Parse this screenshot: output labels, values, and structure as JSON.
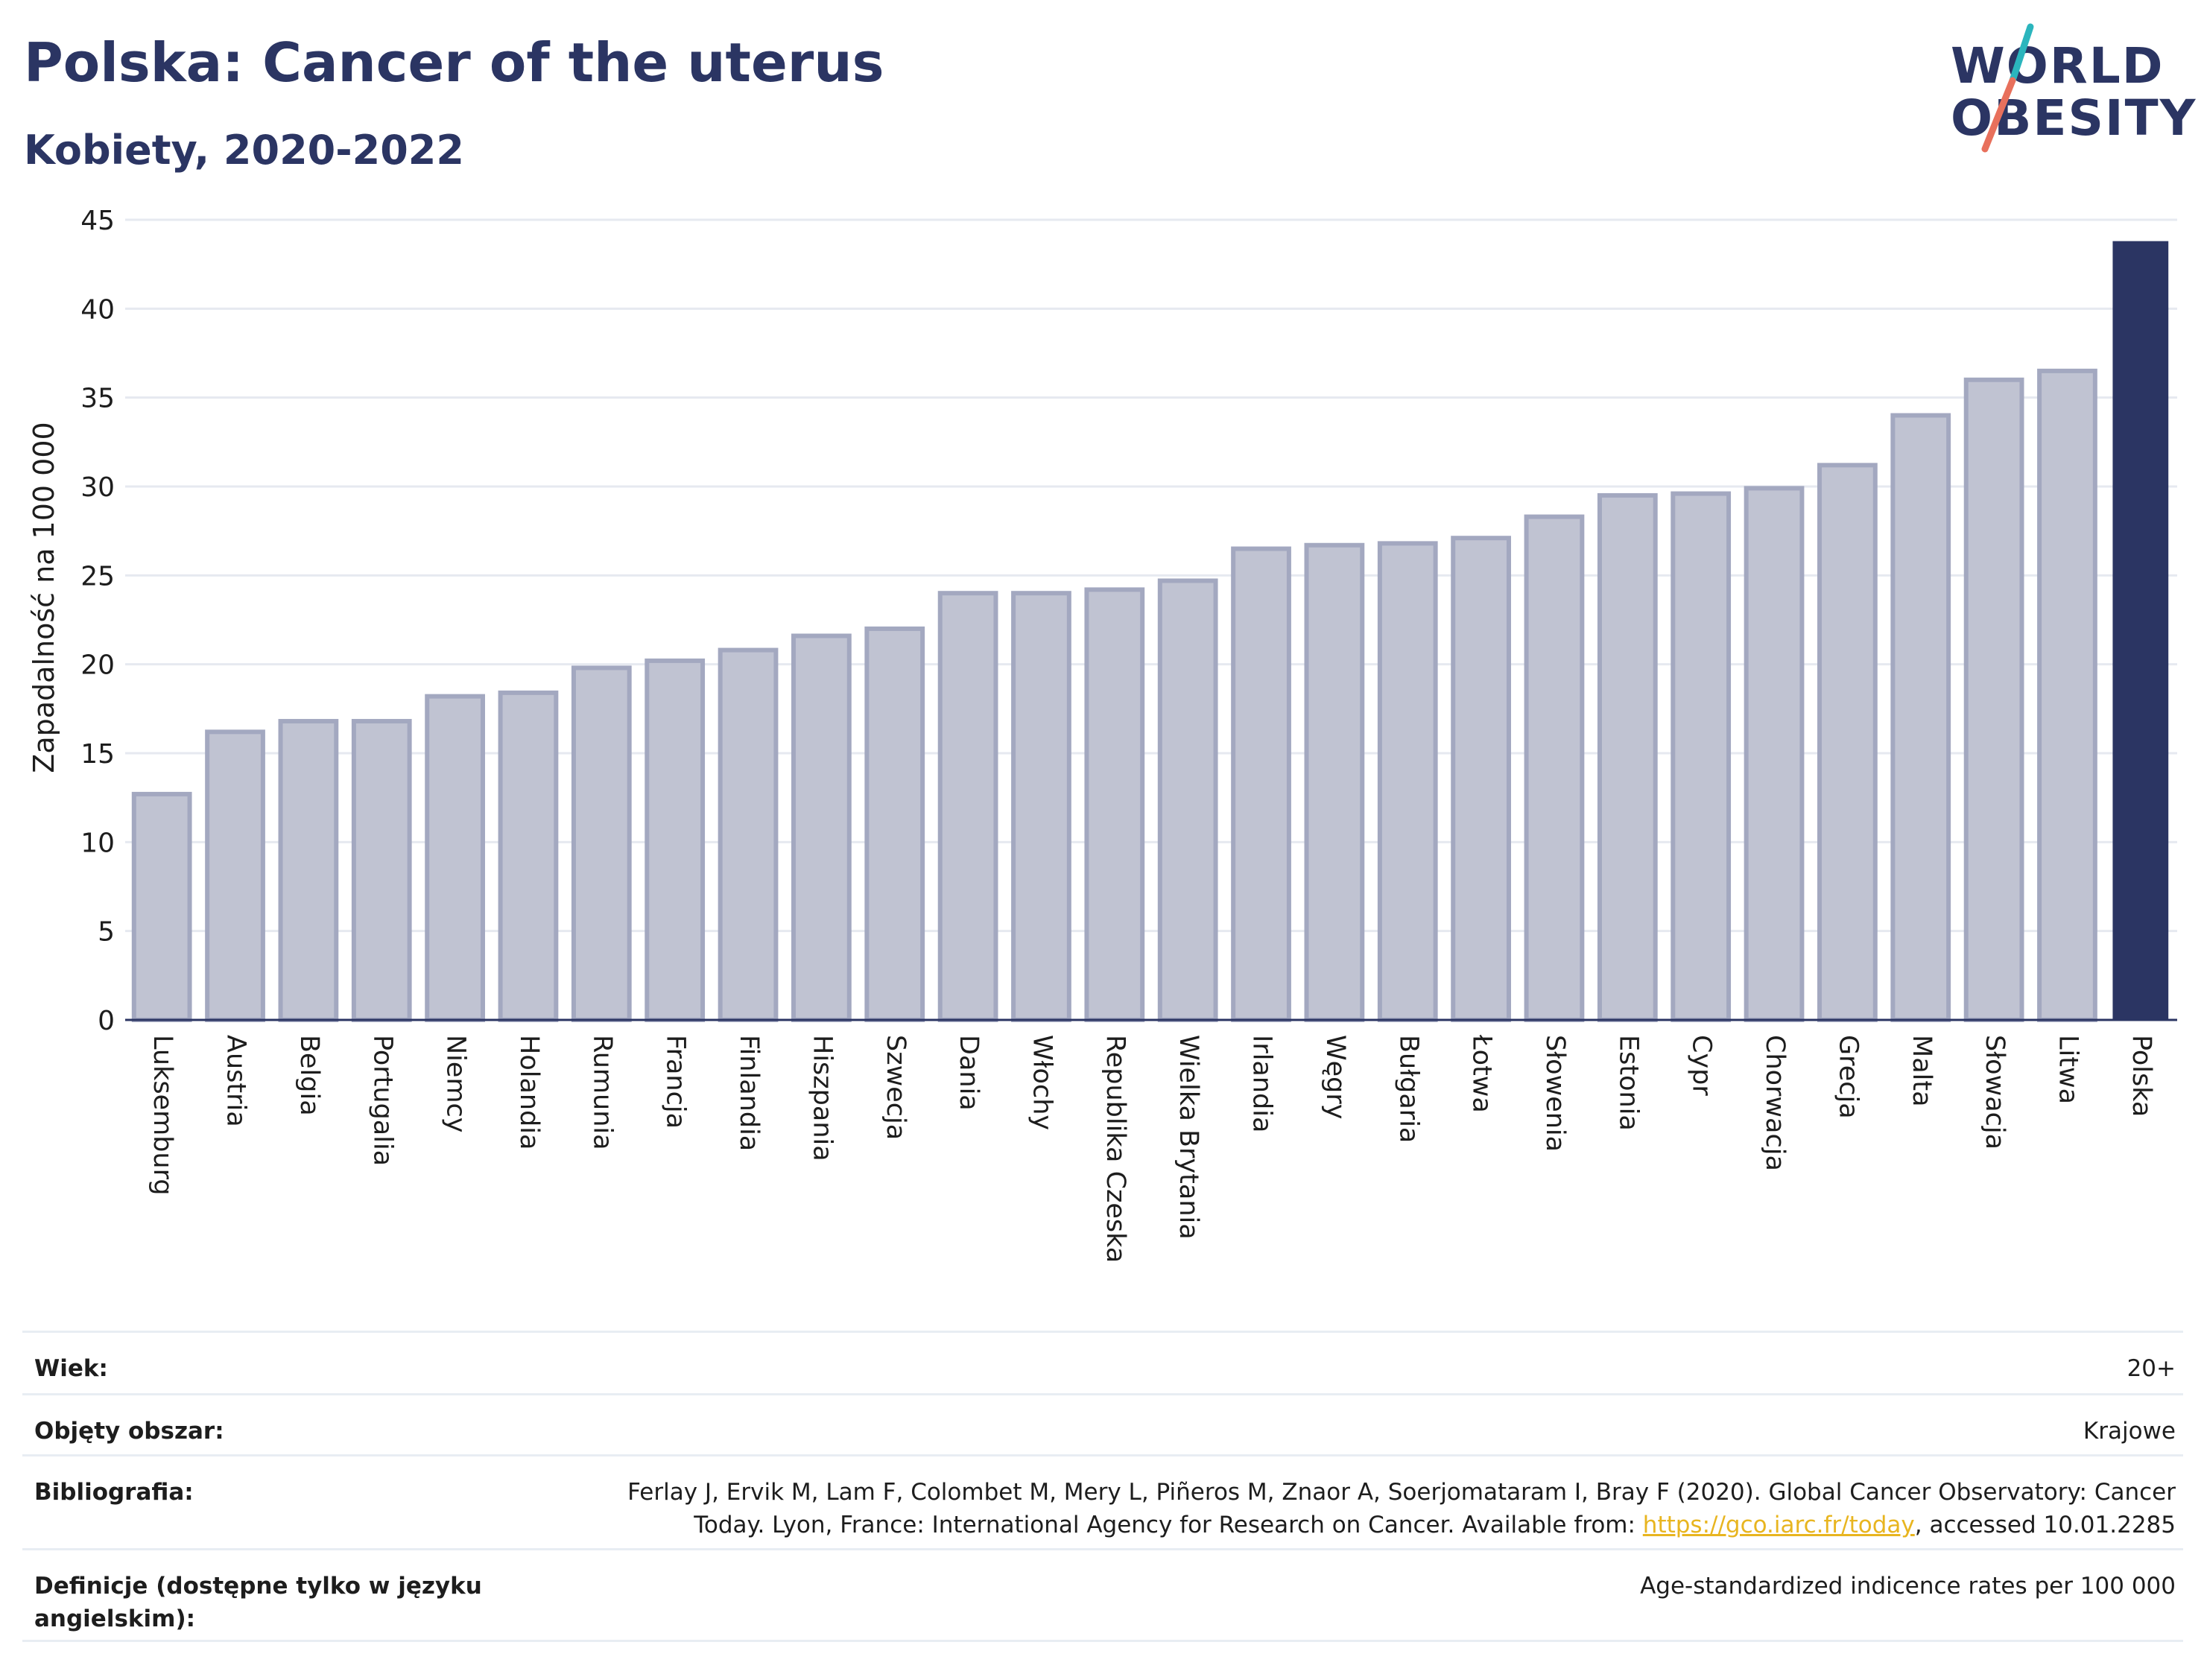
{
  "header": {
    "title": "Polska: Cancer of the uterus",
    "subtitle": "Kobiety, 2020-2022"
  },
  "logo": {
    "line1": "WORLD",
    "line2": "OBESITY",
    "colors": {
      "text": "#2b3563",
      "slash_top": "#2bb5bd",
      "slash_bottom": "#e8705c"
    }
  },
  "chart_data": {
    "type": "bar",
    "ylabel": "Zapadalność na 100 000",
    "ylim": [
      0,
      45
    ],
    "yticks": [
      0,
      5,
      10,
      15,
      20,
      25,
      30,
      35,
      40,
      45
    ],
    "grid": true,
    "highlight": "Polska",
    "colors": {
      "bar": "#c0c3d2",
      "bar_outline": "#a3a8c0",
      "highlight": "#2b3563"
    },
    "categories": [
      "Luksemburg",
      "Austria",
      "Belgia",
      "Portugalia",
      "Niemcy",
      "Holandia",
      "Rumunia",
      "Francja",
      "Finlandia",
      "Hiszpania",
      "Szwecja",
      "Dania",
      "Włochy",
      "Republika Czeska",
      "Wielka Brytania",
      "Irlandia",
      "Węgry",
      "Bułgaria",
      "Łotwa",
      "Słowenia",
      "Estonia",
      "Cypr",
      "Chorwacja",
      "Grecja",
      "Malta",
      "Słowacja",
      "Litwa",
      "Polska"
    ],
    "values": [
      12.7,
      16.2,
      16.8,
      16.8,
      18.2,
      18.4,
      19.8,
      20.2,
      20.8,
      21.6,
      22.0,
      24.0,
      24.0,
      24.2,
      24.7,
      26.5,
      26.7,
      26.8,
      27.1,
      28.3,
      29.5,
      29.6,
      29.9,
      31.2,
      34.0,
      36.0,
      36.5,
      43.8
    ]
  },
  "info": [
    {
      "label": "Wiek:",
      "value": "20+"
    },
    {
      "label": "Objęty obszar:",
      "value": "Krajowe"
    },
    {
      "label": "Bibliografia:",
      "value_line1": "Ferlay J, Ervik M, Lam F, Colombet M, Mery L, Piñeros M, Znaor A, Soerjomataram I, Bray F (2020). Global Cancer Observatory: Cancer",
      "value_line2_prefix": "Today. Lyon, France: International Agency for Research on Cancer. Available from: ",
      "link": "https://gco.iarc.fr/today",
      "value_line2_suffix": ", accessed 10.01.2285"
    },
    {
      "label": "Definicje (dostępne tylko w języku angielskim):",
      "value": "Age-standardized indicence rates per 100 000"
    }
  ]
}
